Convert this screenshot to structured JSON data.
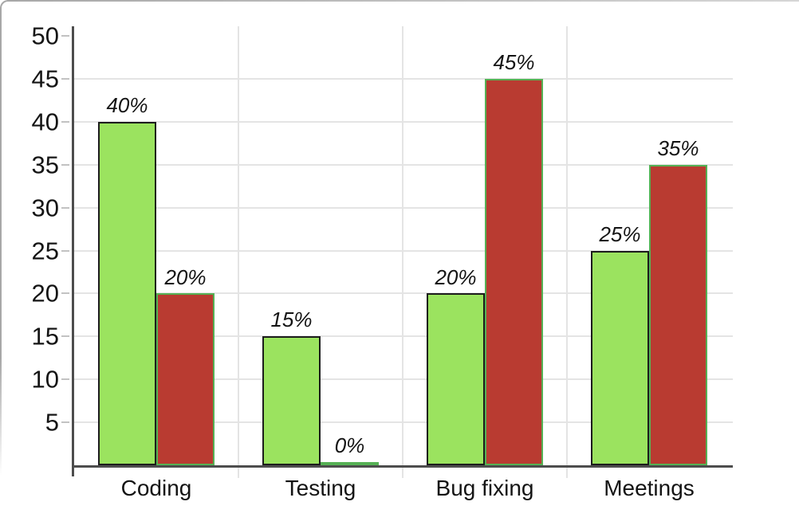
{
  "chart_data": {
    "type": "bar",
    "categories": [
      "Coding",
      "Testing",
      "Bug fixing",
      "Meetings"
    ],
    "series": [
      {
        "name": "series-1-green",
        "fill": "#9be35f",
        "stroke": "#1c1c1c",
        "values": [
          40,
          15,
          20,
          25
        ],
        "labels": [
          "40%",
          "15%",
          "20%",
          "25%"
        ]
      },
      {
        "name": "series-2-red",
        "fill": "#b93b31",
        "stroke": "#55b054",
        "values": [
          20,
          0,
          45,
          35
        ],
        "labels": [
          "20%",
          "0%",
          "45%",
          "35%"
        ]
      }
    ],
    "ylim": [
      0,
      50
    ],
    "yticks": [
      5,
      10,
      15,
      20,
      25,
      30,
      35,
      40,
      45,
      50
    ],
    "gridline_ticks": [
      5,
      10,
      15,
      20,
      25,
      30,
      35,
      40,
      45
    ],
    "grid": true,
    "legend_position": "none"
  },
  "style": {
    "background": "#ffffff",
    "axis_color": "#4d4d4d",
    "grid_color": "#e4e4e4",
    "tick_color": "#c2c2c2",
    "text_color": "#151515",
    "frame_color": "#a8a8a8"
  }
}
